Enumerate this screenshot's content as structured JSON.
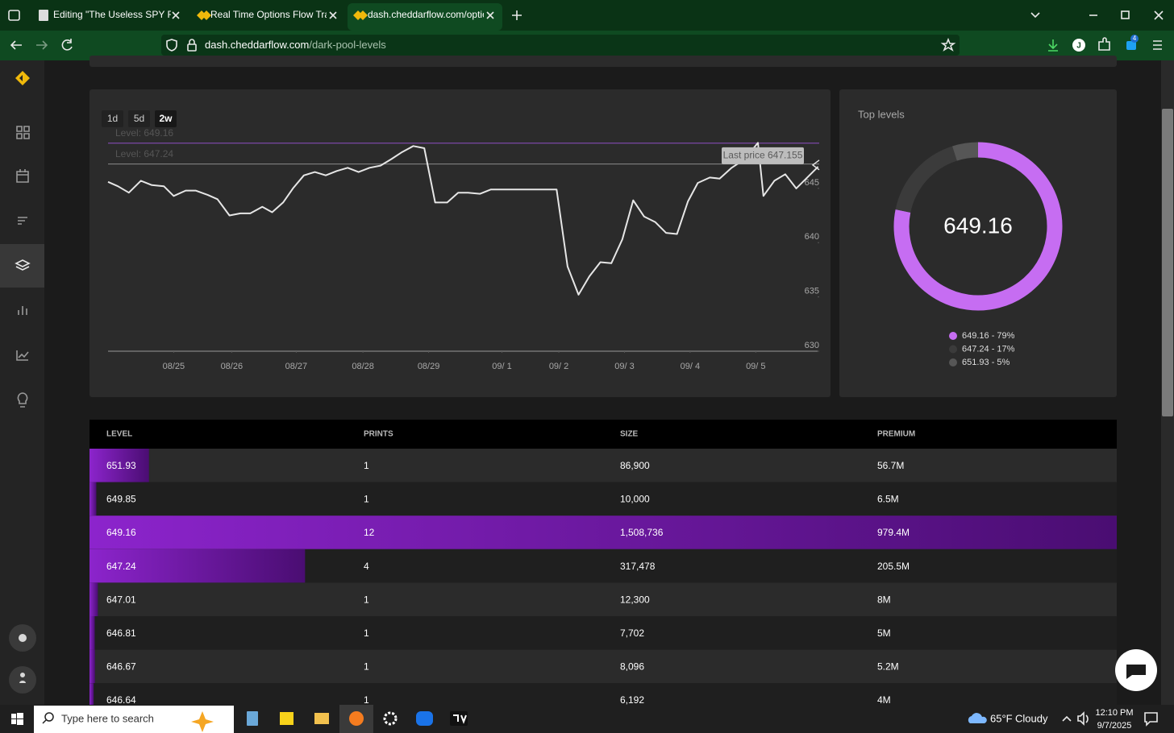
{
  "browser": {
    "tabs": [
      "Editing \"The Useless SPY Report\"",
      "Real Time Options Flow Tracking",
      "dash.cheddarflow.com/options-"
    ],
    "active_tab": 2,
    "url_host": "dash.cheddarflow.com",
    "url_path": "/dark-pool-levels",
    "profile": "J",
    "extension_badge": "4"
  },
  "chart_data": [
    {
      "type": "line",
      "range_buttons": [
        "1d",
        "5d",
        "2w"
      ],
      "active_range": 2,
      "x": [
        0,
        0.9,
        1.9,
        3.0,
        4.0,
        5.1,
        6.0,
        7.1,
        8.0,
        9.1,
        10.0,
        11.1,
        12.1,
        13.0,
        14.1,
        15.0,
        16.0,
        16.9,
        17.9,
        18.9,
        19.9,
        20.9,
        21.9,
        22.9,
        23.9,
        24.9,
        25.9,
        26.8,
        27.9,
        28.9,
        29.9,
        31.0,
        32.0,
        32.9,
        34.0,
        35.0,
        41.0,
        42.0,
        43.0,
        44.0,
        45.0,
        46.0,
        47.0,
        48.0,
        49.0,
        50.0,
        51.0,
        52.0,
        53.0,
        53.9,
        55.0,
        55.9,
        57.0,
        57.9,
        59.0,
        59.4,
        59.9,
        60.9,
        61.9,
        62.9,
        63.9,
        64.9
      ],
      "series": [
        {
          "color": "#e6e6e6",
          "values": [
            645.6,
            645.2,
            644.6,
            645.7,
            645.3,
            645.2,
            644.3,
            644.8,
            644.8,
            644.4,
            644.0,
            642.5,
            642.7,
            642.7,
            643.3,
            642.8,
            643.7,
            645.0,
            646.2,
            646.5,
            646.2,
            646.6,
            646.9,
            646.5,
            646.9,
            647.1,
            647.7,
            648.3,
            648.9,
            648.7,
            643.7,
            643.7,
            644.6,
            644.6,
            644.5,
            644.9,
            644.9,
            637.8,
            635.2,
            636.9,
            638.2,
            638.1,
            640.3,
            643.9,
            642.4,
            641.9,
            640.9,
            640.8,
            643.8,
            645.5,
            646.0,
            645.9,
            646.9,
            647.5,
            648.7,
            649.2,
            644.3,
            645.7,
            646.3,
            645.0,
            646.0,
            647.0
          ]
        }
      ],
      "xlim": [
        0,
        65
      ],
      "xticks": [
        {
          "value": 6.0,
          "label": "08/25"
        },
        {
          "value": 11.3,
          "label": "08/26"
        },
        {
          "value": 17.2,
          "label": "08/27"
        },
        {
          "value": 23.3,
          "label": "08/28"
        },
        {
          "value": 29.3,
          "label": "08/29"
        },
        {
          "value": 36.0,
          "label": "09/ 1"
        },
        {
          "value": 41.2,
          "label": "09/ 2"
        },
        {
          "value": 47.2,
          "label": "09/ 3"
        },
        {
          "value": 53.2,
          "label": "09/ 4"
        },
        {
          "value": 59.2,
          "label": "09/ 5"
        }
      ],
      "ylim": [
        630,
        651
      ],
      "yticks": [
        630,
        635,
        640,
        645
      ],
      "levels": [
        {
          "label": "Level: 649.16",
          "value": 649.16,
          "color": "#8e4fc4"
        },
        {
          "label": "Level: 647.24",
          "value": 647.24,
          "color": "#8a8a8a"
        }
      ],
      "last_price": {
        "label": "Last price 647.155",
        "value": 647.155
      }
    },
    {
      "type": "pie",
      "title": "Top levels",
      "center_label": "649.16",
      "categories": [
        "649.16 - 79%",
        "647.24 - 17%",
        "651.93 - 5%"
      ],
      "values": [
        79,
        17,
        5
      ],
      "colors": [
        "#c66df2",
        "#3b3b3b",
        "#565656"
      ]
    }
  ],
  "table": {
    "headers": [
      "LEVEL",
      "PRINTS",
      "SIZE",
      "PREMIUM"
    ],
    "rows": [
      {
        "level": "651.93",
        "prints": "1",
        "size": "86,900",
        "premium": {
          "value": 56700000,
          "label": "56.7M"
        }
      },
      {
        "level": "649.85",
        "prints": "1",
        "size": "10,000",
        "premium": {
          "value": 6500000,
          "label": "6.5M"
        }
      },
      {
        "level": "649.16",
        "prints": "12",
        "size": "1,508,736",
        "premium": {
          "value": 979400000,
          "label": "979.4M"
        }
      },
      {
        "level": "647.24",
        "prints": "4",
        "size": "317,478",
        "premium": {
          "value": 205500000,
          "label": "205.5M"
        }
      },
      {
        "level": "647.01",
        "prints": "1",
        "size": "12,300",
        "premium": {
          "value": 8000000,
          "label": "8M"
        }
      },
      {
        "level": "646.81",
        "prints": "1",
        "size": "7,702",
        "premium": {
          "value": 5000000,
          "label": "5M"
        }
      },
      {
        "level": "646.67",
        "prints": "1",
        "size": "8,096",
        "premium": {
          "value": 5200000,
          "label": "5.2M"
        }
      },
      {
        "level": "646.64",
        "prints": "1",
        "size": "6,192",
        "premium": {
          "value": 4000000,
          "label": "4M"
        }
      }
    ]
  },
  "taskbar": {
    "search_placeholder": "Type here to search",
    "temperature": "65°F",
    "weather": "Cloudy",
    "time": "12:10 PM",
    "date": "9/7/2025"
  }
}
